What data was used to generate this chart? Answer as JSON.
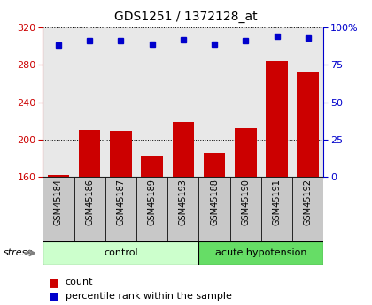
{
  "title": "GDS1251 / 1372128_at",
  "samples": [
    "GSM45184",
    "GSM45186",
    "GSM45187",
    "GSM45189",
    "GSM45193",
    "GSM45188",
    "GSM45190",
    "GSM45191",
    "GSM45192"
  ],
  "counts": [
    162,
    210,
    209,
    183,
    219,
    186,
    212,
    284,
    272
  ],
  "percentile_ranks": [
    88,
    91,
    91,
    89,
    92,
    89,
    91,
    94,
    93
  ],
  "group_labels": [
    "control",
    "acute hypotension"
  ],
  "group_colors": [
    "#ccffcc",
    "#66dd66"
  ],
  "control_count": 5,
  "bar_color": "#cc0000",
  "dot_color": "#0000cc",
  "ylim_left": [
    160,
    320
  ],
  "yticks_left": [
    160,
    200,
    240,
    280,
    320
  ],
  "ylim_right": [
    0,
    100
  ],
  "yticks_right": [
    0,
    25,
    50,
    75,
    100
  ],
  "left_tick_color": "#cc0000",
  "right_tick_color": "#0000cc",
  "background_color": "#ffffff",
  "plot_bg_color": "#e8e8e8",
  "label_bg_color": "#c8c8c8",
  "legend_count_label": "count",
  "legend_pct_label": "percentile rank within the sample",
  "stress_label": "stress",
  "right_axis_label": "100%"
}
